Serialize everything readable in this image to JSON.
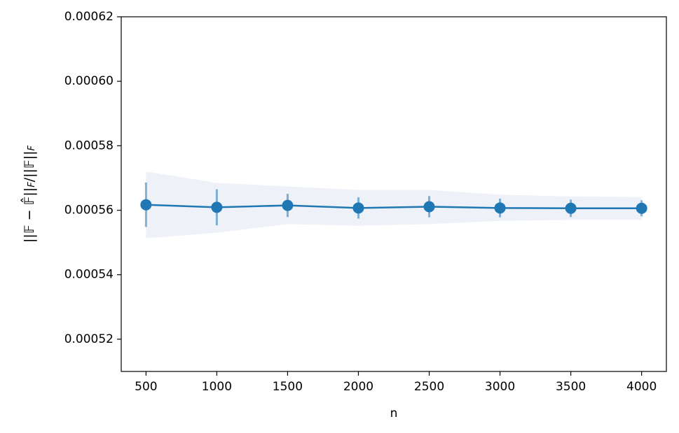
{
  "chart_data": {
    "type": "line",
    "x_label": "n",
    "y_label": [
      "||𝔽 − 𝔽̂||",
      "F",
      "/||𝔽||",
      "F"
    ],
    "x": [
      500,
      1000,
      1500,
      2000,
      2500,
      3000,
      3500,
      4000
    ],
    "series": [
      {
        "color": "#1f77b4",
        "values": [
          0.0005617,
          0.0005609,
          0.0005615,
          0.0005607,
          0.0005611,
          0.0005607,
          0.0005606,
          0.0005606
        ],
        "errors": [
          6.9e-06,
          5.6e-06,
          3.6e-06,
          3.3e-06,
          3.3e-06,
          2.9e-06,
          2.7e-06,
          2.5e-06
        ],
        "band_upper": [
          0.000572,
          0.0005685,
          0.0005674,
          0.0005663,
          0.0005663,
          0.0005648,
          0.0005643,
          0.0005641
        ],
        "band_lower": [
          0.0005513,
          0.000553,
          0.0005557,
          0.0005552,
          0.0005557,
          0.0005567,
          0.000557,
          0.000557
        ],
        "band_color": "#eef2f8"
      }
    ],
    "xlim": [
      325,
      4175
    ],
    "ylim": [
      0.00051,
      0.00062
    ],
    "xticks": [
      500,
      1000,
      1500,
      2000,
      2500,
      3000,
      3500,
      4000
    ],
    "yticks": [
      0.00052,
      0.00054,
      0.00056,
      0.00058,
      {
        "value": 0.0006,
        "label": "0.00060"
      },
      0.00062
    ],
    "grid": false
  }
}
